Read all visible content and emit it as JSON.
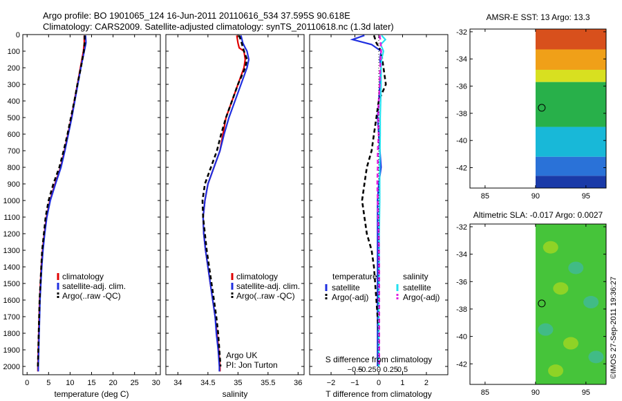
{
  "title": {
    "line1": "Argo profile: BO 1901065_124 16-Jun-2011 20110616_534 37.595S 90.618E",
    "line2": "Climatology: CARS2009. Satellite-adjusted climatology: synTS_20110618.nc (1.3d later)"
  },
  "credit": "©IMOS 27-Sep-2011 19:36:27",
  "colors": {
    "climatology": "#e00000",
    "satellite": "#1f2fe0",
    "argo": "#000000",
    "salinity_sat": "#22e0f0",
    "salinity_argo": "#e020e0",
    "map_mask": "#ffffff"
  },
  "chart_data": [
    {
      "id": "temperature",
      "type": "line",
      "xlabel": "temperature (deg C)",
      "xlim": [
        -1,
        31
      ],
      "ylim": [
        2050,
        0
      ],
      "xticks": [
        0,
        5,
        10,
        15,
        20,
        25,
        30
      ],
      "xticklabels": [
        "0",
        "5",
        "10",
        "15",
        "20",
        "25",
        "30"
      ],
      "yticks": [
        0,
        100,
        200,
        300,
        400,
        500,
        600,
        700,
        800,
        900,
        1000,
        1100,
        1200,
        1300,
        1400,
        1500,
        1600,
        1700,
        1800,
        1900,
        2000
      ],
      "yticklabels": [
        "0",
        "100",
        "200",
        "300",
        "400",
        "500",
        "600",
        "700",
        "800",
        "900",
        "1000",
        "1100",
        "1200",
        "1300",
        "1400",
        "1500",
        "1600",
        "1700",
        "1800",
        "1900",
        "2000"
      ],
      "legend": [
        "climatology",
        "satellite-adj. clim.",
        "Argo(..raw -QC)"
      ],
      "series": [
        {
          "name": "climatology",
          "style": "solid",
          "depth": [
            5,
            50,
            100,
            200,
            300,
            400,
            500,
            600,
            700,
            800,
            900,
            1000,
            1100,
            1200,
            1300,
            1400,
            1500,
            1600,
            1700,
            1800,
            1900,
            2000,
            2030
          ],
          "values": [
            13.3,
            13.3,
            13.1,
            12.4,
            11.7,
            11.0,
            10.3,
            9.5,
            8.7,
            7.8,
            6.5,
            5.3,
            4.5,
            4.0,
            3.6,
            3.3,
            3.1,
            2.9,
            2.8,
            2.7,
            2.6,
            2.5,
            2.5
          ]
        },
        {
          "name": "satellite-adj. clim.",
          "style": "solid",
          "depth": [
            5,
            50,
            100,
            200,
            300,
            400,
            500,
            600,
            700,
            800,
            900,
            1000,
            1100,
            1200,
            1300,
            1400,
            1500,
            1600,
            1700,
            1800,
            1900,
            2000,
            2030
          ],
          "values": [
            13.6,
            13.7,
            13.3,
            12.5,
            11.8,
            11.1,
            10.4,
            9.6,
            8.8,
            7.9,
            6.6,
            5.4,
            4.6,
            4.1,
            3.7,
            3.4,
            3.2,
            3.0,
            2.9,
            2.8,
            2.7,
            2.6,
            2.6
          ]
        },
        {
          "name": "Argo(..raw -QC)",
          "style": "dashed",
          "depth": [
            5,
            50,
            100,
            200,
            300,
            400,
            500,
            600,
            700,
            800,
            900,
            1000,
            1100,
            1200,
            1300,
            1400,
            1500,
            1600,
            1700,
            1800,
            1900,
            2000
          ],
          "values": [
            13.4,
            13.4,
            13.2,
            12.5,
            11.7,
            11.0,
            10.2,
            9.4,
            8.5,
            7.5,
            6.1,
            5.0,
            4.3,
            3.9,
            3.5,
            3.3,
            3.1,
            2.9,
            2.8,
            2.7,
            2.6,
            2.5
          ]
        }
      ]
    },
    {
      "id": "salinity",
      "type": "line",
      "xlabel": "salinity",
      "xlim": [
        33.8,
        36.1
      ],
      "ylim": [
        2050,
        0
      ],
      "xticks": [
        34,
        34.5,
        35,
        35.5,
        36
      ],
      "xticklabels": [
        "34",
        "34.5",
        "35",
        "35.5",
        "36"
      ],
      "legend": [
        "climatology",
        "satellite-adj. clim.",
        "Argo(..raw -QC)"
      ],
      "note": [
        "Argo UK",
        "PI: Jon Turton"
      ],
      "series": [
        {
          "name": "climatology",
          "style": "solid",
          "depth": [
            5,
            50,
            80,
            100,
            150,
            200,
            300,
            400,
            500,
            600,
            700,
            800,
            900,
            1000,
            1100,
            1200,
            1300,
            1400,
            1500,
            1600,
            1700,
            1800,
            1900,
            2000,
            2030
          ],
          "values": [
            34.98,
            35.0,
            35.02,
            35.1,
            35.12,
            35.1,
            35.0,
            34.9,
            34.8,
            34.75,
            34.7,
            34.6,
            34.5,
            34.45,
            34.42,
            34.43,
            34.46,
            34.5,
            34.54,
            34.58,
            34.62,
            34.65,
            34.68,
            34.7,
            34.7
          ]
        },
        {
          "name": "satellite-adj. clim.",
          "style": "solid",
          "depth": [
            5,
            50,
            80,
            100,
            150,
            200,
            300,
            400,
            500,
            600,
            700,
            800,
            900,
            1000,
            1100,
            1200,
            1300,
            1400,
            1500,
            1600,
            1700,
            1800,
            1900,
            2000,
            2030
          ],
          "values": [
            35.05,
            35.08,
            35.12,
            35.15,
            35.18,
            35.15,
            35.05,
            34.95,
            34.85,
            34.77,
            34.7,
            34.6,
            34.5,
            34.45,
            34.42,
            34.43,
            34.46,
            34.5,
            34.54,
            34.58,
            34.62,
            34.64,
            34.67,
            34.69,
            34.69
          ]
        },
        {
          "name": "Argo(..raw -QC)",
          "style": "dashed",
          "depth": [
            5,
            50,
            100,
            150,
            200,
            300,
            400,
            500,
            600,
            700,
            800,
            900,
            1000,
            1100,
            1200,
            1300,
            1400,
            1500,
            1600,
            1700,
            1800,
            1900,
            2000
          ],
          "values": [
            35.02,
            35.06,
            35.1,
            35.15,
            35.12,
            35.0,
            34.9,
            34.8,
            34.72,
            34.65,
            34.55,
            34.45,
            34.41,
            34.42,
            34.45,
            34.48,
            34.52,
            34.56,
            34.6,
            34.64,
            34.67,
            34.69,
            34.71
          ]
        }
      ]
    },
    {
      "id": "difference",
      "type": "line",
      "xlabel": "T difference from climatology",
      "xlabel_top": "S difference from climatology",
      "xlim": [
        -2.9,
        2.9
      ],
      "ylim": [
        2050,
        0
      ],
      "xticks": [
        -2,
        -1,
        0,
        1,
        2
      ],
      "xticklabels": [
        "−2",
        "−1",
        "0",
        "1",
        "2"
      ],
      "sticks": [
        -0.5,
        -0.25,
        0,
        0.25,
        0.5
      ],
      "sticklabels": [
        "−0.5",
        "−0.25",
        "0",
        "0.25",
        "0.5"
      ],
      "legend_headers": [
        "temperature",
        "salinity"
      ],
      "legend": [
        "satellite",
        "Argo(-adj)",
        "satellite",
        "Argo(-adj)"
      ],
      "series": [
        {
          "name": "T satellite",
          "style": "solid",
          "var": "temperature",
          "depth": [
            5,
            30,
            60,
            100,
            150,
            200,
            300,
            400,
            500,
            600,
            700,
            800,
            900,
            1000,
            1200,
            1400,
            1600,
            1800,
            2000
          ],
          "values": [
            -0.6,
            -1.1,
            -0.3,
            0.1,
            0.05,
            0.1,
            0.05,
            0.0,
            -0.05,
            0.0,
            0.05,
            0.1,
            0.0,
            -0.05,
            -0.05,
            -0.05,
            -0.05,
            -0.05,
            -0.05
          ]
        },
        {
          "name": "T Argo(-adj)",
          "style": "dashed",
          "var": "temperature",
          "depth": [
            5,
            50,
            100,
            200,
            300,
            400,
            500,
            600,
            700,
            800,
            900,
            1000,
            1100,
            1200,
            1300,
            1400,
            1600,
            1800,
            2000
          ],
          "values": [
            -0.2,
            -0.1,
            0.1,
            0.2,
            0.3,
            0.0,
            -0.1,
            -0.2,
            -0.3,
            -0.5,
            -0.6,
            -0.7,
            -0.6,
            -0.5,
            -0.3,
            -0.2,
            -0.1,
            0.0,
            0.0
          ]
        },
        {
          "name": "S satellite",
          "style": "solid",
          "var": "salinity",
          "depth": [
            5,
            30,
            60,
            100,
            150,
            200,
            300,
            400,
            500,
            600,
            800,
            1000,
            1200,
            1400,
            1600,
            1800,
            2000
          ],
          "values": [
            0.06,
            0.14,
            0.04,
            0.1,
            0.06,
            0.05,
            0.05,
            0.04,
            0.03,
            0.03,
            0.02,
            0.02,
            0.01,
            0.01,
            0.0,
            0.0,
            0.0
          ]
        },
        {
          "name": "S Argo(-adj)",
          "style": "dashed",
          "var": "salinity",
          "depth": [
            5,
            50,
            100,
            200,
            300,
            400,
            500,
            600,
            700,
            800,
            900,
            1000,
            1200,
            1400,
            1600,
            1800,
            2000
          ],
          "values": [
            0.02,
            0.04,
            0.05,
            0.03,
            0.02,
            0.0,
            -0.01,
            0.0,
            -0.02,
            -0.02,
            -0.03,
            -0.02,
            0.0,
            0.01,
            0.01,
            0.01,
            0.01
          ]
        }
      ]
    },
    {
      "id": "sst_map",
      "type": "heatmap",
      "title": "AMSR-E SST: 13 Argo: 13.3",
      "xlim": [
        83.5,
        97
      ],
      "ylim": [
        -43.5,
        -31.8
      ],
      "xticks": [
        85,
        90,
        95
      ],
      "xticklabels": [
        "85",
        "90",
        "95"
      ],
      "yticks": [
        -32,
        -34,
        -36,
        -38,
        -40,
        -42
      ],
      "yticklabels": [
        "-32",
        "-34",
        "-36",
        "-38",
        "-40",
        "-42"
      ],
      "data_west_limit": 90,
      "marker": {
        "lon": 90.618,
        "lat": -37.595
      },
      "rows": [
        {
          "lat_top": -31.8,
          "lat_bottom": -33.3,
          "color": "#d8501c"
        },
        {
          "lat_top": -33.3,
          "lat_bottom": -34.8,
          "color": "#f0a018"
        },
        {
          "lat_top": -34.8,
          "lat_bottom": -35.7,
          "color": "#d8e020"
        },
        {
          "lat_top": -35.7,
          "lat_bottom": -39.0,
          "color": "#28b04a"
        },
        {
          "lat_top": -39.0,
          "lat_bottom": -41.2,
          "color": "#18b8d8"
        },
        {
          "lat_top": -41.2,
          "lat_bottom": -42.6,
          "color": "#2a72d8"
        },
        {
          "lat_top": -42.6,
          "lat_bottom": -43.5,
          "color": "#1a3aa8"
        }
      ]
    },
    {
      "id": "sla_map",
      "type": "heatmap",
      "title": "Altimetric SLA: -0.017 Argo: 0.0027",
      "xlim": [
        83.5,
        97
      ],
      "ylim": [
        -43.5,
        -31.8
      ],
      "xticks": [
        85,
        90,
        95
      ],
      "xticklabels": [
        "85",
        "90",
        "95"
      ],
      "yticks": [
        -32,
        -34,
        -36,
        -38,
        -40,
        -42
      ],
      "yticklabels": [
        "-32",
        "-34",
        "-36",
        "-38",
        "-40",
        "-42"
      ],
      "data_west_limit": 90,
      "marker": {
        "lon": 90.618,
        "lat": -37.595
      },
      "rows": [
        {
          "lat_top": -31.8,
          "lat_bottom": -43.5,
          "color": "#46c43a"
        }
      ],
      "blobs": [
        {
          "lon": 91.5,
          "lat": -33.5,
          "color": "#a8d820"
        },
        {
          "lon": 94.0,
          "lat": -35.0,
          "color": "#40b8a0"
        },
        {
          "lon": 92.5,
          "lat": -36.5,
          "color": "#a8d820"
        },
        {
          "lon": 95.5,
          "lat": -37.5,
          "color": "#40b8a0"
        },
        {
          "lon": 91.0,
          "lat": -39.5,
          "color": "#40b8a0"
        },
        {
          "lon": 93.5,
          "lat": -40.5,
          "color": "#a8d820"
        },
        {
          "lon": 96.0,
          "lat": -41.5,
          "color": "#40b8a0"
        },
        {
          "lon": 92.0,
          "lat": -42.5,
          "color": "#a8d820"
        }
      ]
    }
  ]
}
